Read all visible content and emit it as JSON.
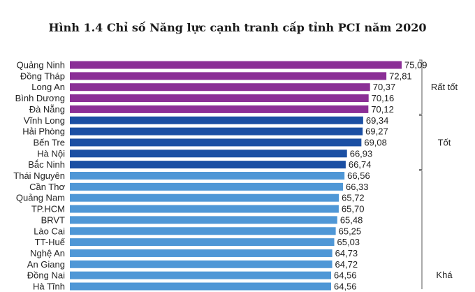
{
  "chart_data": {
    "type": "bar",
    "orientation": "horizontal",
    "title": "Hình 1.4 Chỉ số Năng lực cạnh tranh cấp tỉnh PCI năm 2020",
    "categories": [
      "Quảng Ninh",
      "Đồng Tháp",
      "Long An",
      "Bình Dương",
      "Đà Nẵng",
      "Vĩnh Long",
      "Hải Phòng",
      "Bến Tre",
      "Hà Nội",
      "Bắc Ninh",
      "Thái Nguyên",
      "Cần Thơ",
      "Quảng Nam",
      "TP.HCM",
      "BRVT",
      "Lào Cai",
      "TT-Huế",
      "Nghệ An",
      "An Giang",
      "Đồng Nai",
      "Hà Tĩnh"
    ],
    "values": [
      75.09,
      72.81,
      70.37,
      70.16,
      70.12,
      69.34,
      69.27,
      69.08,
      66.93,
      66.74,
      66.56,
      66.33,
      65.72,
      65.7,
      65.48,
      65.25,
      65.03,
      64.73,
      64.72,
      64.56,
      64.56
    ],
    "value_labels": [
      "75,09",
      "72,81",
      "70,37",
      "70,16",
      "70,12",
      "69,34",
      "69,27",
      "69,08",
      "66,93",
      "66,74",
      "66,56",
      "66,33",
      "65,72",
      "65,70",
      "65,48",
      "65,25",
      "65,03",
      "64,73",
      "64,72",
      "64,56",
      "64,56"
    ],
    "groups": [
      {
        "label": "Rất tốt",
        "start": 0,
        "end": 4,
        "color": "#8b2f96"
      },
      {
        "label": "Tốt",
        "start": 5,
        "end": 9,
        "color": "#1b4fa3"
      },
      {
        "label": "Khá",
        "start": 10,
        "end": 20,
        "color": "#4f97d6"
      }
    ]
  }
}
